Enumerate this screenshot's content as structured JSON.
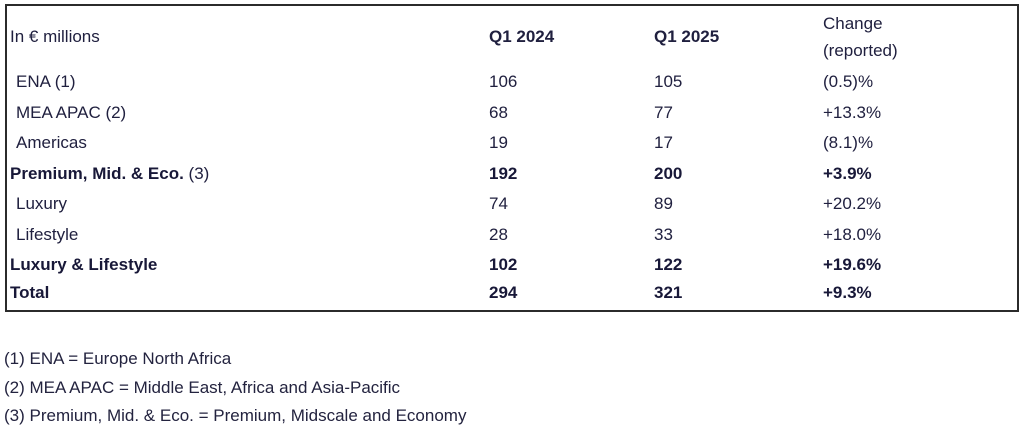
{
  "table": {
    "unit_label": "In € millions",
    "header": {
      "q1_2024": "Q1 2024",
      "q1_2025": "Q1 2025",
      "change_line1": "Change",
      "change_line2": "(reported)"
    },
    "rows": [
      {
        "label": "ENA",
        "suffix": " (1)",
        "q1_2024": "106",
        "q1_2025": "105",
        "change": "(0.5)%"
      },
      {
        "label": "MEA APAC",
        "suffix": " (2)",
        "q1_2024": "68",
        "q1_2025": "77",
        "change": "+13.3%"
      },
      {
        "label": "Americas",
        "suffix": "",
        "q1_2024": "19",
        "q1_2025": "17",
        "change": "(8.1)%"
      },
      {
        "label": "Premium, Mid. & Eco.",
        "suffix": " (3)",
        "q1_2024": "192",
        "q1_2025": "200",
        "change": "+3.9%"
      },
      {
        "label": "Luxury",
        "suffix": "",
        "q1_2024": "74",
        "q1_2025": "89",
        "change": "+20.2%"
      },
      {
        "label": "Lifestyle",
        "suffix": "",
        "q1_2024": "28",
        "q1_2025": "33",
        "change": "+18.0%"
      },
      {
        "label": "Luxury & Lifestyle",
        "suffix": "",
        "q1_2024": "102",
        "q1_2025": "122",
        "change": "+19.6%"
      },
      {
        "label": "Total",
        "suffix": "",
        "q1_2024": "294",
        "q1_2025": "321",
        "change": "+9.3%"
      }
    ]
  },
  "footnotes": [
    "(1) ENA = Europe North Africa",
    "(2) MEA APAC = Middle East, Africa and Asia-Pacific",
    "(3) Premium, Mid. & Eco. = Premium, Midscale and Economy"
  ],
  "colors": {
    "text": "#20203f",
    "bold_text": "#181838",
    "border": "#2b2b2b",
    "background": "#ffffff"
  }
}
